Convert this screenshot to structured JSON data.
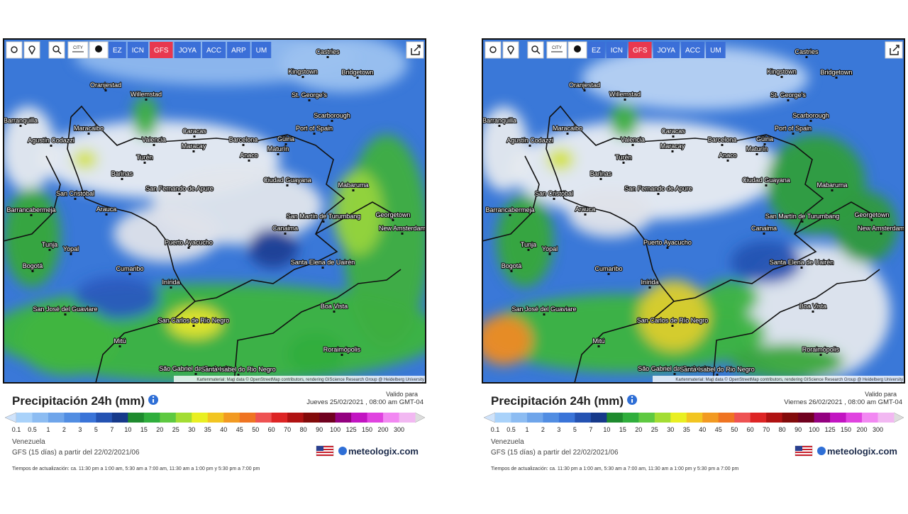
{
  "panels": [
    {
      "toolbar": {
        "city": "CITY",
        "models": [
          "EZ",
          "ICN",
          "GFS",
          "JOYA",
          "ACC",
          "ARP",
          "UM"
        ],
        "active_model": 2
      },
      "cities": [
        "Castries",
        "Kingstown",
        "Bridgetown",
        "Oranjestad",
        "Willemstad",
        "St. George's",
        "Scarborough",
        "Barranquilla",
        "Port of Spain",
        "Maracaibo",
        "Valencia",
        "Caracas",
        "Barcelona",
        "Güiria",
        "Agustín Codazzi",
        "Maracay",
        "Maturín",
        "Anaco",
        "Turén",
        "Barinas",
        "Ciudad Guayana",
        "Mabaruma",
        "San Fernando de Apure",
        "San Cristóbal",
        "Barrancabermeja",
        "Arauca",
        "Georgetown",
        "San Martín de Turumbang",
        "New Amsterdam",
        "Canaima",
        "Tunja",
        "Yopal",
        "Puerto Ayacucho",
        "Santa Elena de Uairén",
        "Bogotá",
        "Cumaribo",
        "Inírida",
        "Boa Vista",
        "San José del Guaviare",
        "San Carlos de Río Negro",
        "Mitú",
        "Roraimópolis",
        "São Gabriel da Cachoeira",
        "Santa Isabel do Rio Negro"
      ],
      "attribution": "Kartenmaterial: Map data © OpenStreetMap contributors, rendering GIScience Research Group @ Heidelberg University",
      "title": "Precipitación 24h (mm)",
      "valid_label": "Valido para",
      "valid_date": "Jueves 25/02/2021 , 08:00 am GMT-04",
      "legend": {
        "values": [
          0.1,
          0.5,
          1,
          2,
          3,
          5,
          7,
          10,
          15,
          20,
          25,
          30,
          35,
          40,
          45,
          50,
          60,
          70,
          80,
          90,
          100,
          125,
          150,
          200,
          300
        ],
        "colors": [
          "#a9d2fa",
          "#8cbcf2",
          "#6fa5ea",
          "#518de2",
          "#3a74d8",
          "#2452b2",
          "#16398a",
          "#1e8a2e",
          "#2fae3c",
          "#5ec941",
          "#a3dd33",
          "#e9ef22",
          "#f2c522",
          "#f29a22",
          "#ef7422",
          "#ee5252",
          "#dd2424",
          "#b01212",
          "#820a0a",
          "#70001f",
          "#93007f",
          "#c214c2",
          "#e043e0",
          "#f288f2",
          "#f2b8f2"
        ]
      },
      "region": "Venezuela",
      "run": "GFS (15 días) a partir del 22/02/2021/06",
      "update_note": "Tiempos de actualización: ca. 11:30 pm a 1:00 am, 5:30 am a 7:00 am, 11:30 am a 1:00 pm y 5:30 pm a 7:00 pm",
      "brand": "meteologix.com"
    },
    {
      "toolbar": {
        "city": "CITY",
        "models": [
          "EZ",
          "ICN",
          "GFS",
          "JOYA",
          "ACC",
          "UM"
        ],
        "active_model": 2
      },
      "cities": [
        "Castries",
        "Kingstown",
        "Bridgetown",
        "Oranjestad",
        "Willemstad",
        "St. George's",
        "Scarborough",
        "Barranquilla",
        "Port of Spain",
        "Maracaibo",
        "Valencia",
        "Caracas",
        "Barcelona",
        "Güiria",
        "Agustín Codazzi",
        "Maracay",
        "Maturín",
        "Anaco",
        "Turén",
        "Barinas",
        "Ciudad Guayana",
        "Mabaruma",
        "San Fernando de Apure",
        "San Cristóbal",
        "Barrancabermeja",
        "Arauca",
        "Georgetown",
        "San Martín de Turumbang",
        "New Amsterdam",
        "Canaima",
        "Tunja",
        "Yopal",
        "Puerto Ayacucho",
        "Santa Elena de Uairén",
        "Bogotá",
        "Cumaribo",
        "Inírida",
        "Boa Vista",
        "San José del Guaviare",
        "San Carlos de Río Negro",
        "Mitú",
        "Roraimópolis",
        "São Gabriel da Cachoeira",
        "Santa Isabel do Rio Negro"
      ],
      "attribution": "Kartenmaterial: Map data © OpenStreetMap contributors, rendering GIScience Research Group @ Heidelberg University",
      "title": "Precipitación 24h (mm)",
      "valid_label": "Valido para",
      "valid_date": "Viernes 26/02/2021 , 08:00 am GMT-04",
      "legend": {
        "values": [
          0.1,
          0.5,
          1,
          2,
          3,
          5,
          7,
          10,
          15,
          20,
          25,
          30,
          35,
          40,
          45,
          50,
          60,
          70,
          80,
          90,
          100,
          125,
          150,
          200,
          300
        ],
        "colors": [
          "#a9d2fa",
          "#8cbcf2",
          "#6fa5ea",
          "#518de2",
          "#3a74d8",
          "#2452b2",
          "#16398a",
          "#1e8a2e",
          "#2fae3c",
          "#5ec941",
          "#a3dd33",
          "#e9ef22",
          "#f2c522",
          "#f29a22",
          "#ef7422",
          "#ee5252",
          "#dd2424",
          "#b01212",
          "#820a0a",
          "#70001f",
          "#93007f",
          "#c214c2",
          "#e043e0",
          "#f288f2",
          "#f2b8f2"
        ]
      },
      "region": "Venezuela",
      "run": "GFS (15 días) a partir del 22/02/2021/06",
      "update_note": "Tiempos de actualización: ca. 11:30 pm a 1:00 am, 5:30 am a 7:00 am, 11:30 am a 1:00 pm y 5:30 pm a 7:00 pm",
      "brand": "meteologix.com"
    }
  ]
}
